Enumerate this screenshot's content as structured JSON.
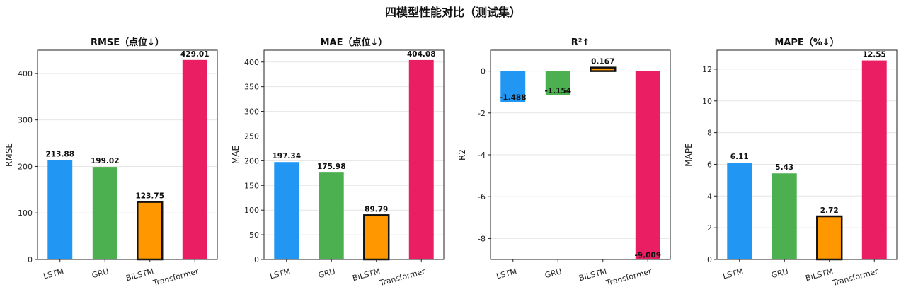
{
  "title": "四模型性能对比（测试集）",
  "colors": {
    "LSTM": "#2196f3",
    "GRU": "#4caf50",
    "BiLSTM": "#ff9800",
    "Transformer": "#e91e63",
    "highlight_edge": "#111111"
  },
  "chart_data": [
    {
      "type": "bar",
      "title": "RMSE（点位↓）",
      "ylabel": "RMSE",
      "categories": [
        "LSTM",
        "GRU",
        "BiLSTM",
        "Transformer"
      ],
      "values": [
        213.88,
        199.02,
        123.75,
        429.01
      ],
      "value_labels": [
        "213.88",
        "199.02",
        "123.75",
        "429.01"
      ],
      "ylim": [
        0,
        450
      ],
      "yticks": [
        0,
        100,
        200,
        300,
        400
      ],
      "highlight": "BiLSTM",
      "grid": "y"
    },
    {
      "type": "bar",
      "title": "MAE（点位↓）",
      "ylabel": "MAE",
      "categories": [
        "LSTM",
        "GRU",
        "BiLSTM",
        "Transformer"
      ],
      "values": [
        197.34,
        175.98,
        89.79,
        404.08
      ],
      "value_labels": [
        "197.34",
        "175.98",
        "89.79",
        "404.08"
      ],
      "ylim": [
        0,
        424
      ],
      "yticks": [
        0,
        50,
        100,
        150,
        200,
        250,
        300,
        350,
        400
      ],
      "highlight": "BiLSTM",
      "grid": "y"
    },
    {
      "type": "bar",
      "title": "R²↑",
      "ylabel": "R2",
      "categories": [
        "LSTM",
        "GRU",
        "BiLSTM",
        "Transformer"
      ],
      "values": [
        -1.488,
        -1.154,
        0.167,
        -9.009
      ],
      "value_labels": [
        "-1.488",
        "-1.154",
        "0.167",
        "-9.009"
      ],
      "ylim": [
        -9.0,
        1.0
      ],
      "yticks": [
        -8,
        -6,
        -4,
        -2,
        0
      ],
      "highlight": "BiLSTM",
      "grid": "y"
    },
    {
      "type": "bar",
      "title": "MAPE（%↓）",
      "ylabel": "MAPE",
      "categories": [
        "LSTM",
        "GRU",
        "BiLSTM",
        "Transformer"
      ],
      "values": [
        6.11,
        5.43,
        2.72,
        12.55
      ],
      "value_labels": [
        "6.11",
        "5.43",
        "2.72",
        "12.55"
      ],
      "ylim": [
        0,
        13.2
      ],
      "yticks": [
        0,
        2,
        4,
        6,
        8,
        10,
        12
      ],
      "highlight": "BiLSTM",
      "grid": "y"
    }
  ]
}
